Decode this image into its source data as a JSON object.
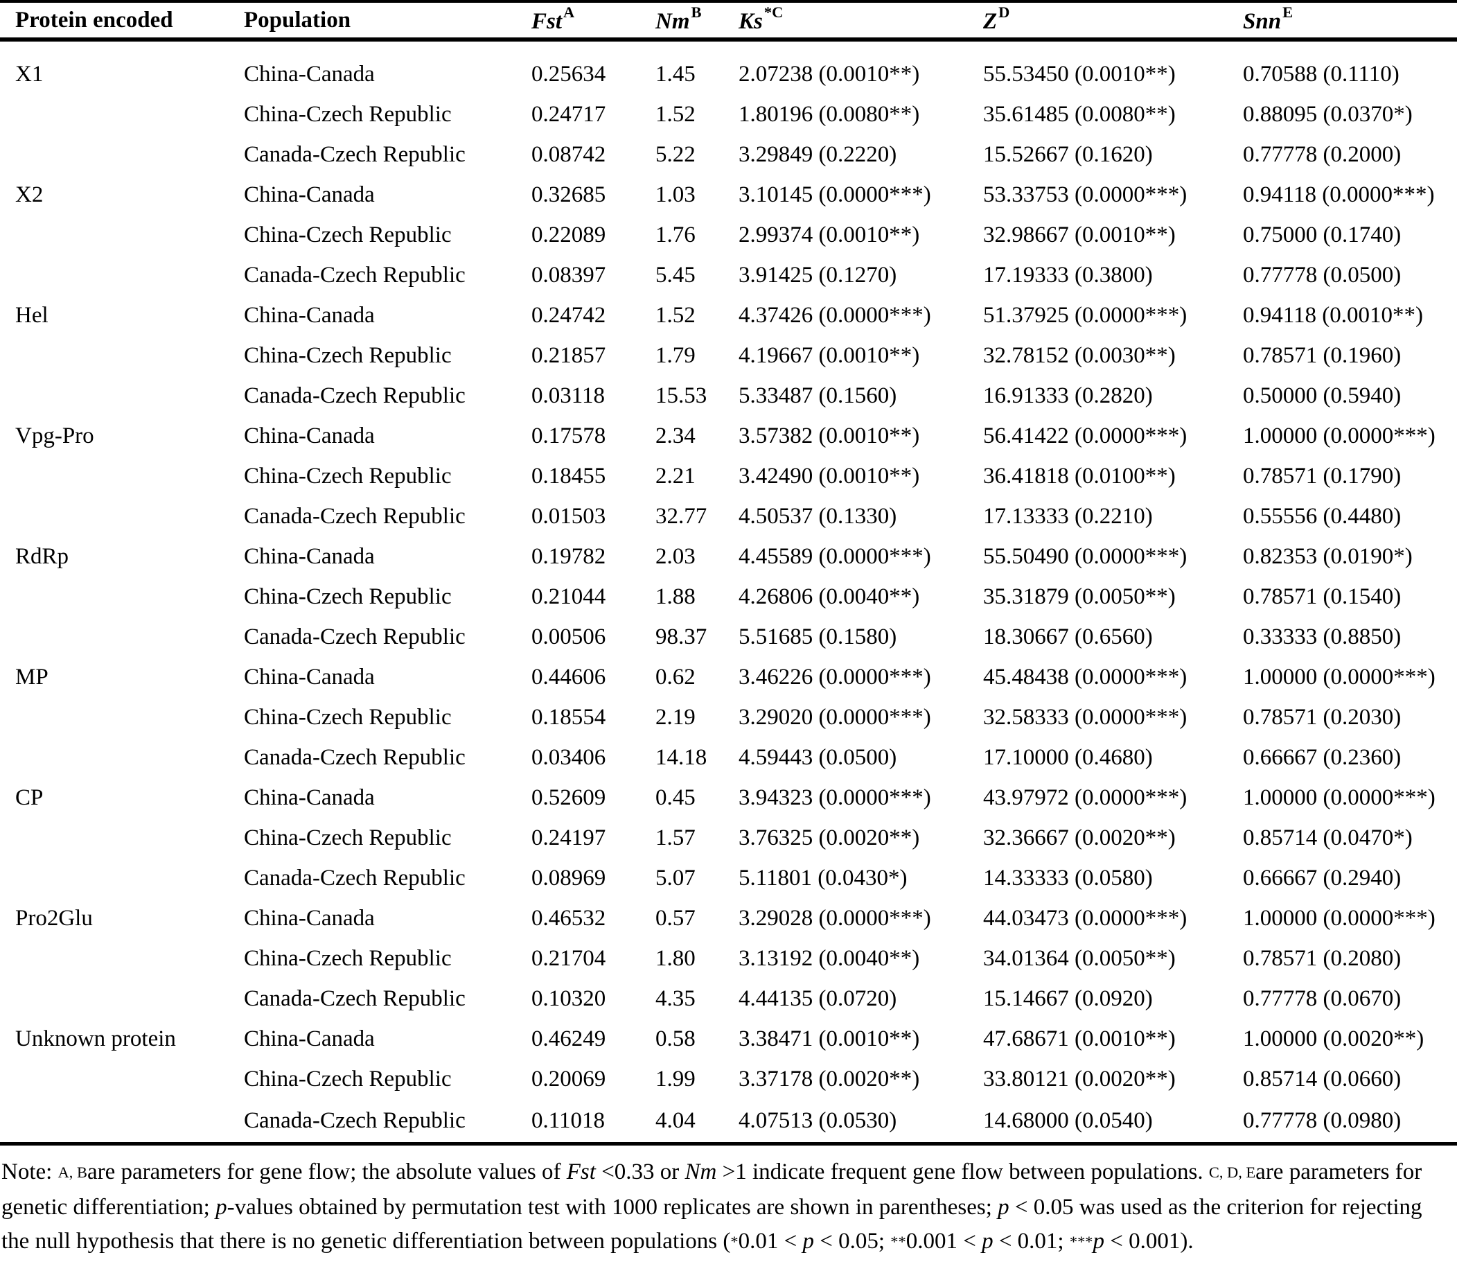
{
  "colors": {
    "text": "#000000",
    "background": "#ffffff",
    "rule": "#000000"
  },
  "table": {
    "columns": [
      {
        "label": "Protein encoded",
        "sup": "",
        "italic": false
      },
      {
        "label": "Population",
        "sup": "",
        "italic": false
      },
      {
        "label": "Fst",
        "sup": "A",
        "italic": true
      },
      {
        "label": "Nm",
        "sup": "B",
        "italic": true
      },
      {
        "label": "Ks",
        "sup": "*C",
        "italic": true
      },
      {
        "label": "Z",
        "sup": "D",
        "italic": true
      },
      {
        "label": "Snn",
        "sup": "E",
        "italic": true
      }
    ],
    "rows": [
      {
        "protein": "X1",
        "population": "China-Canada",
        "fst": "0.25634",
        "nm": "1.45",
        "ks": "2.07238 (0.0010**)",
        "z": "55.53450 (0.0010**)",
        "snn": "0.70588 (0.1110)"
      },
      {
        "protein": "",
        "population": "China-Czech Republic",
        "fst": "0.24717",
        "nm": "1.52",
        "ks": "1.80196 (0.0080**)",
        "z": "35.61485 (0.0080**)",
        "snn": "0.88095 (0.0370*)"
      },
      {
        "protein": "",
        "population": "Canada-Czech Republic",
        "fst": "0.08742",
        "nm": "5.22",
        "ks": "3.29849 (0.2220)",
        "z": "15.52667 (0.1620)",
        "snn": "0.77778 (0.2000)"
      },
      {
        "protein": "X2",
        "population": "China-Canada",
        "fst": "0.32685",
        "nm": "1.03",
        "ks": "3.10145 (0.0000***)",
        "z": "53.33753 (0.0000***)",
        "snn": "0.94118 (0.0000***)"
      },
      {
        "protein": "",
        "population": "China-Czech Republic",
        "fst": "0.22089",
        "nm": "1.76",
        "ks": "2.99374 (0.0010**)",
        "z": "32.98667 (0.0010**)",
        "snn": "0.75000 (0.1740)"
      },
      {
        "protein": "",
        "population": "Canada-Czech Republic",
        "fst": "0.08397",
        "nm": "5.45",
        "ks": "3.91425 (0.1270)",
        "z": "17.19333 (0.3800)",
        "snn": "0.77778 (0.0500)"
      },
      {
        "protein": "Hel",
        "population": "China-Canada",
        "fst": "0.24742",
        "nm": "1.52",
        "ks": "4.37426 (0.0000***)",
        "z": "51.37925 (0.0000***)",
        "snn": "0.94118 (0.0010**)"
      },
      {
        "protein": "",
        "population": "China-Czech Republic",
        "fst": "0.21857",
        "nm": "1.79",
        "ks": "4.19667 (0.0010**)",
        "z": "32.78152 (0.0030**)",
        "snn": "0.78571 (0.1960)"
      },
      {
        "protein": "",
        "population": "Canada-Czech Republic",
        "fst": "0.03118",
        "nm": "15.53",
        "ks": "5.33487 (0.1560)",
        "z": "16.91333 (0.2820)",
        "snn": "0.50000 (0.5940)"
      },
      {
        "protein": "Vpg-Pro",
        "population": "China-Canada",
        "fst": "0.17578",
        "nm": "2.34",
        "ks": "3.57382 (0.0010**)",
        "z": "56.41422 (0.0000***)",
        "snn": "1.00000 (0.0000***)"
      },
      {
        "protein": "",
        "population": "China-Czech Republic",
        "fst": "0.18455",
        "nm": "2.21",
        "ks": "3.42490 (0.0010**)",
        "z": "36.41818 (0.0100**)",
        "snn": "0.78571 (0.1790)"
      },
      {
        "protein": "",
        "population": "Canada-Czech Republic",
        "fst": "0.01503",
        "nm": "32.77",
        "ks": "4.50537 (0.1330)",
        "z": "17.13333 (0.2210)",
        "snn": "0.55556 (0.4480)"
      },
      {
        "protein": "RdRp",
        "population": "China-Canada",
        "fst": "0.19782",
        "nm": "2.03",
        "ks": "4.45589 (0.0000***)",
        "z": "55.50490 (0.0000***)",
        "snn": "0.82353 (0.0190*)"
      },
      {
        "protein": "",
        "population": "China-Czech Republic",
        "fst": "0.21044",
        "nm": "1.88",
        "ks": "4.26806 (0.0040**)",
        "z": "35.31879 (0.0050**)",
        "snn": "0.78571 (0.1540)"
      },
      {
        "protein": "",
        "population": "Canada-Czech Republic",
        "fst": "0.00506",
        "nm": "98.37",
        "ks": "5.51685 (0.1580)",
        "z": "18.30667 (0.6560)",
        "snn": "0.33333 (0.8850)"
      },
      {
        "protein": "MP",
        "population": "China-Canada",
        "fst": "0.44606",
        "nm": "0.62",
        "ks": "3.46226 (0.0000***)",
        "z": "45.48438 (0.0000***)",
        "snn": "1.00000 (0.0000***)"
      },
      {
        "protein": "",
        "population": "China-Czech Republic",
        "fst": "0.18554",
        "nm": "2.19",
        "ks": "3.29020 (0.0000***)",
        "z": "32.58333 (0.0000***)",
        "snn": "0.78571 (0.2030)"
      },
      {
        "protein": "",
        "population": "Canada-Czech Republic",
        "fst": "0.03406",
        "nm": "14.18",
        "ks": "4.59443 (0.0500)",
        "z": "17.10000 (0.4680)",
        "snn": "0.66667 (0.2360)"
      },
      {
        "protein": "CP",
        "population": "China-Canada",
        "fst": "0.52609",
        "nm": "0.45",
        "ks": "3.94323 (0.0000***)",
        "z": "43.97972 (0.0000***)",
        "snn": "1.00000 (0.0000***)"
      },
      {
        "protein": "",
        "population": "China-Czech Republic",
        "fst": "0.24197",
        "nm": "1.57",
        "ks": "3.76325 (0.0020**)",
        "z": "32.36667 (0.0020**)",
        "snn": "0.85714 (0.0470*)"
      },
      {
        "protein": "",
        "population": "Canada-Czech Republic",
        "fst": "0.08969",
        "nm": "5.07",
        "ks": "5.11801 (0.0430*)",
        "z": "14.33333 (0.0580)",
        "snn": "0.66667 (0.2940)"
      },
      {
        "protein": "Pro2Glu",
        "population": "China-Canada",
        "fst": "0.46532",
        "nm": "0.57",
        "ks": "3.29028 (0.0000***)",
        "z": "44.03473 (0.0000***)",
        "snn": "1.00000 (0.0000***)"
      },
      {
        "protein": "",
        "population": "China-Czech Republic",
        "fst": "0.21704",
        "nm": "1.80",
        "ks": "3.13192 (0.0040**)",
        "z": "34.01364 (0.0050**)",
        "snn": "0.78571 (0.2080)"
      },
      {
        "protein": "",
        "population": "Canada-Czech Republic",
        "fst": "0.10320",
        "nm": "4.35",
        "ks": "4.44135 (0.0720)",
        "z": "15.14667 (0.0920)",
        "snn": "0.77778 (0.0670)"
      },
      {
        "protein": "Unknown protein",
        "population": "China-Canada",
        "fst": "0.46249",
        "nm": "0.58",
        "ks": "3.38471 (0.0010**)",
        "z": "47.68671 (0.0010**)",
        "snn": "1.00000 (0.0020**)"
      },
      {
        "protein": "",
        "population": "China-Czech Republic",
        "fst": "0.20069",
        "nm": "1.99",
        "ks": "3.37178 (0.0020**)",
        "z": "33.80121 (0.0020**)",
        "snn": "0.85714 (0.0660)"
      },
      {
        "protein": "",
        "population": "Canada-Czech Republic",
        "fst": "0.11018",
        "nm": "4.04",
        "ks": "4.07513 (0.0530)",
        "z": "14.68000 (0.0540)",
        "snn": "0.77778 (0.0980)"
      }
    ]
  },
  "note": {
    "segments": [
      {
        "t": "Note: ",
        "s": "normal"
      },
      {
        "t": "A, B",
        "s": "sup"
      },
      {
        "t": "are parameters for gene flow; the absolute values of ",
        "s": "normal"
      },
      {
        "t": "Fst",
        "s": "italic"
      },
      {
        "t": " <0.33 or ",
        "s": "normal"
      },
      {
        "t": "Nm",
        "s": "italic"
      },
      {
        "t": " >1 indicate frequent gene flow between populations. ",
        "s": "normal"
      },
      {
        "t": "C, D, E",
        "s": "sup"
      },
      {
        "t": "are parameters for genetic differentiation; ",
        "s": "normal"
      },
      {
        "t": "p",
        "s": "italic"
      },
      {
        "t": "-values obtained by permutation test with 1000 replicates are shown in parentheses; ",
        "s": "normal"
      },
      {
        "t": "p",
        "s": "italic"
      },
      {
        "t": " < 0.05 was used as the criterion for rejecting the null hypothesis that there is no genetic differentiation between populations (",
        "s": "normal"
      },
      {
        "t": "*",
        "s": "sup"
      },
      {
        "t": "0.01 < ",
        "s": "normal"
      },
      {
        "t": "p",
        "s": "italic"
      },
      {
        "t": " < 0.05; ",
        "s": "normal"
      },
      {
        "t": "**",
        "s": "sup"
      },
      {
        "t": "0.001 < ",
        "s": "normal"
      },
      {
        "t": "p",
        "s": "italic"
      },
      {
        "t": " < 0.01; ",
        "s": "normal"
      },
      {
        "t": "***",
        "s": "sup"
      },
      {
        "t": "p",
        "s": "italic"
      },
      {
        "t": " < 0.001).",
        "s": "normal"
      }
    ]
  }
}
